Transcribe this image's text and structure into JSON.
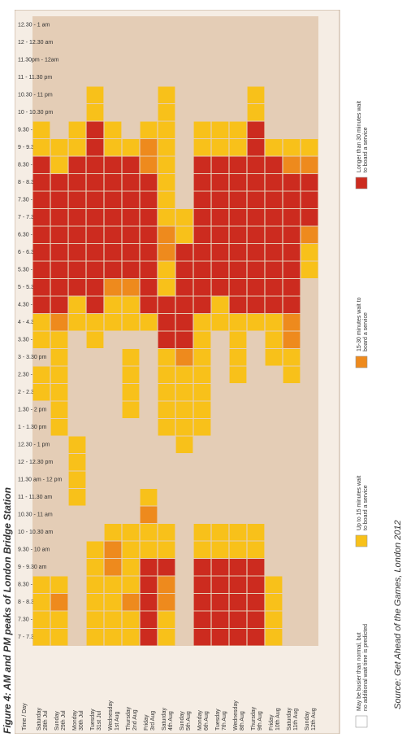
{
  "figure_title": "Figure 4: AM and PM peaks of London Bridge Station",
  "source": "Source: Get Ahead of the Games, London 2012",
  "colors": {
    "background": "#e4cdb6",
    "busy": "#ffffff",
    "wait_15": "#f8c11a",
    "wait_15_30": "#ee8a1d",
    "wait_30_plus": "#cc2b1f"
  },
  "chart_data": {
    "type": "heatmap",
    "title": "AM and PM peaks of London Bridge Station",
    "corner_label": "Time / Day",
    "x_categories": [
      "Saturday 28th Jul",
      "Sunday 29th Jul",
      "Monday 30th Jul",
      "Tuesday 31st Jul",
      "Wednesday 1st Aug",
      "Thursday 2nd Aug",
      "Friday 3rd Aug",
      "Saturday 4th Aug",
      "Sunday 5th Aug",
      "Monday 6th Aug",
      "Tuesday 7th Aug",
      "Wednesday 8th Aug",
      "Thursday 9th Aug",
      "Friday 10th Aug",
      "Saturday 11th Aug",
      "Sunday 12th Aug"
    ],
    "y_categories": [
      "7 - 7.30 am",
      "7.30 - 8 am",
      "8 - 8.30 am",
      "8.30 - 9 am",
      "9 - 9.30 am",
      "9.30 - 10 am",
      "10 - 10.30 am",
      "10.30 - 11 am",
      "11 - 11.30 am",
      "11.30 am - 12 pm",
      "12 - 12.30 pm",
      "12.30 - 1 pm",
      "1 - 1.30 pm",
      "1.30 - 2 pm",
      "2 - 2.30 pm",
      "2.30 - 3 pm",
      "3 - 3.30 pm",
      "3.30 - 4 pm",
      "4 - 4.30 pm",
      "4.30 - 5 pm",
      "5 - 5.30 pm",
      "5.30 - 6 pm",
      "6 - 6.30 pm",
      "6.30 - 7 pm",
      "7 - 7.30 pm",
      "7.30 - 8 pm",
      "8 - 8.30 pm",
      "8.30 - 9 pm",
      "9 - 9.30 pm",
      "9.30 - 10 pm",
      "10 - 10.30 pm",
      "10.30 - 11 pm",
      "11 - 11.30 pm",
      "11.30pm - 12am",
      "12 - 12.30 am",
      "12.30 - 1 am"
    ],
    "legend": [
      {
        "level": 1,
        "label": "May be busier than normal, but no additional wait time is predicted"
      },
      {
        "level": 2,
        "label": "Up to 15 minutes wait to board a service"
      },
      {
        "level": 3,
        "label": "15-30 minutes wait to board a service"
      },
      {
        "level": 4,
        "label": "Longer than 30 minutes wait to board a service"
      }
    ],
    "levels_note": "0 = no impact, 1 = busier, 2 = up to 15 min, 3 = 15-30 min, 4 = over 30 min; one row per day, one value per time slot",
    "values": [
      [
        2,
        2,
        2,
        2,
        0,
        0,
        0,
        0,
        0,
        0,
        0,
        0,
        0,
        0,
        2,
        2,
        0,
        2,
        2,
        4,
        4,
        4,
        4,
        4,
        4,
        4,
        4,
        4,
        2,
        2,
        0,
        0,
        0,
        0,
        0,
        0
      ],
      [
        2,
        2,
        3,
        2,
        0,
        0,
        0,
        0,
        0,
        0,
        0,
        0,
        2,
        2,
        2,
        2,
        2,
        2,
        3,
        4,
        4,
        4,
        4,
        4,
        4,
        4,
        4,
        2,
        2,
        0,
        0,
        0,
        0,
        0,
        0,
        0
      ],
      [
        0,
        0,
        0,
        0,
        0,
        0,
        0,
        0,
        2,
        2,
        2,
        2,
        0,
        0,
        0,
        0,
        0,
        0,
        2,
        2,
        4,
        4,
        4,
        4,
        4,
        4,
        4,
        4,
        2,
        2,
        0,
        0,
        0,
        0,
        0,
        0
      ],
      [
        2,
        2,
        2,
        2,
        2,
        2,
        0,
        0,
        0,
        0,
        0,
        0,
        0,
        0,
        0,
        0,
        0,
        2,
        2,
        4,
        4,
        4,
        4,
        4,
        4,
        4,
        4,
        4,
        4,
        4,
        2,
        2,
        0,
        0,
        0,
        0
      ],
      [
        2,
        2,
        2,
        2,
        3,
        3,
        2,
        0,
        0,
        0,
        0,
        0,
        0,
        0,
        0,
        0,
        0,
        0,
        2,
        2,
        3,
        4,
        4,
        4,
        4,
        4,
        4,
        4,
        2,
        2,
        0,
        0,
        0,
        0,
        0,
        0
      ],
      [
        2,
        2,
        3,
        2,
        2,
        2,
        2,
        0,
        0,
        0,
        0,
        0,
        0,
        2,
        2,
        2,
        2,
        0,
        2,
        2,
        3,
        4,
        4,
        4,
        4,
        4,
        4,
        4,
        2,
        0,
        0,
        0,
        0,
        0,
        0,
        0
      ],
      [
        4,
        4,
        4,
        4,
        4,
        2,
        2,
        3,
        2,
        0,
        0,
        0,
        0,
        0,
        0,
        0,
        0,
        0,
        2,
        4,
        4,
        4,
        4,
        4,
        4,
        4,
        4,
        3,
        3,
        2,
        0,
        0,
        0,
        0,
        0,
        0
      ],
      [
        2,
        2,
        3,
        3,
        4,
        2,
        2,
        0,
        0,
        0,
        0,
        0,
        2,
        2,
        2,
        2,
        2,
        4,
        4,
        4,
        2,
        2,
        3,
        3,
        2,
        2,
        2,
        2,
        2,
        2,
        2,
        2,
        0,
        0,
        0,
        0
      ],
      [
        0,
        0,
        0,
        0,
        0,
        0,
        0,
        0,
        0,
        0,
        0,
        2,
        2,
        2,
        2,
        2,
        3,
        4,
        4,
        4,
        4,
        4,
        4,
        2,
        2,
        0,
        0,
        0,
        0,
        0,
        0,
        0,
        0,
        0,
        0,
        0
      ],
      [
        4,
        4,
        4,
        4,
        4,
        2,
        2,
        0,
        0,
        0,
        0,
        0,
        2,
        2,
        2,
        2,
        2,
        2,
        2,
        4,
        4,
        4,
        4,
        4,
        4,
        4,
        4,
        4,
        2,
        2,
        0,
        0,
        0,
        0,
        0,
        0
      ],
      [
        4,
        4,
        4,
        4,
        4,
        2,
        2,
        0,
        0,
        0,
        0,
        0,
        0,
        0,
        0,
        0,
        0,
        0,
        2,
        2,
        4,
        4,
        4,
        4,
        4,
        4,
        4,
        4,
        2,
        2,
        0,
        0,
        0,
        0,
        0,
        0
      ],
      [
        4,
        4,
        4,
        4,
        4,
        2,
        2,
        0,
        0,
        0,
        0,
        0,
        0,
        0,
        0,
        2,
        2,
        2,
        2,
        4,
        4,
        4,
        4,
        4,
        4,
        4,
        4,
        4,
        2,
        2,
        0,
        0,
        0,
        0,
        0,
        0
      ],
      [
        4,
        4,
        4,
        4,
        4,
        2,
        2,
        0,
        0,
        0,
        0,
        0,
        0,
        0,
        0,
        0,
        0,
        0,
        2,
        4,
        4,
        4,
        4,
        4,
        4,
        4,
        4,
        4,
        4,
        4,
        2,
        2,
        0,
        0,
        0,
        0
      ],
      [
        2,
        2,
        2,
        2,
        0,
        0,
        0,
        0,
        0,
        0,
        0,
        0,
        0,
        0,
        0,
        0,
        2,
        2,
        2,
        4,
        4,
        4,
        4,
        4,
        4,
        4,
        4,
        4,
        2,
        0,
        0,
        0,
        0,
        0,
        0,
        0
      ],
      [
        0,
        0,
        0,
        0,
        0,
        0,
        0,
        0,
        0,
        0,
        0,
        0,
        0,
        0,
        0,
        2,
        2,
        3,
        3,
        4,
        4,
        4,
        4,
        4,
        4,
        4,
        4,
        3,
        2,
        0,
        0,
        0,
        0,
        0,
        0,
        0
      ],
      [
        0,
        0,
        0,
        0,
        0,
        0,
        0,
        0,
        0,
        0,
        0,
        0,
        0,
        0,
        0,
        0,
        0,
        0,
        0,
        0,
        0,
        2,
        2,
        3,
        4,
        4,
        4,
        3,
        2,
        0,
        0,
        0,
        0,
        0,
        0,
        0
      ]
    ]
  }
}
